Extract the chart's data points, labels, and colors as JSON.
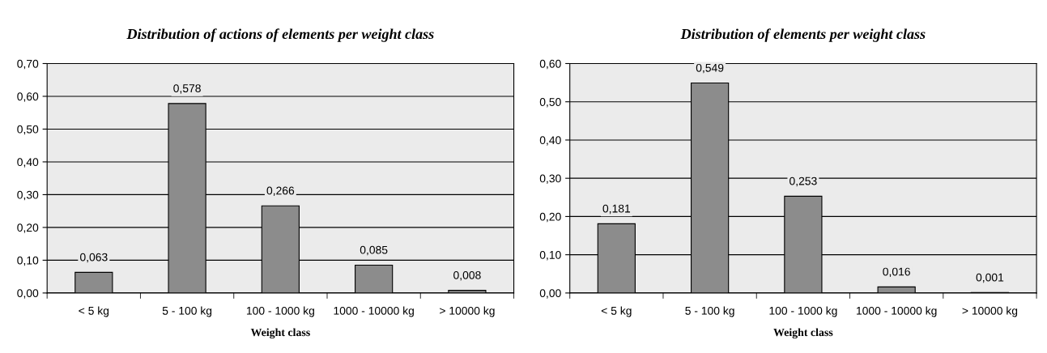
{
  "chart_data": [
    {
      "type": "bar",
      "title": "Distribution of actions of elements per weight class",
      "xlabel": "Weight class",
      "categories": [
        "< 5 kg",
        "5 - 100 kg",
        "100 - 1000 kg",
        "1000 - 10000 kg",
        "> 10000 kg"
      ],
      "values": [
        0.063,
        0.578,
        0.266,
        0.085,
        0.008
      ],
      "value_labels": [
        "0,063",
        "0,578",
        "0,266",
        "0,085",
        "0,008"
      ],
      "color": "#8c8c8c",
      "grid": "y",
      "ylim": [
        0,
        0.7
      ],
      "yticks": [
        {
          "value": 0,
          "label": "0,00"
        },
        {
          "value": 0.1,
          "label": "0,10"
        },
        {
          "value": 0.2,
          "label": "0,20"
        },
        {
          "value": 0.3,
          "label": "0,30"
        },
        {
          "value": 0.4,
          "label": "0,40"
        },
        {
          "value": 0.5,
          "label": "0,50"
        },
        {
          "value": 0.6,
          "label": "0,60"
        },
        {
          "value": 0.7,
          "label": "0,70"
        }
      ]
    },
    {
      "type": "bar",
      "title": "Distribution of elements per weight class",
      "xlabel": "Weight class",
      "categories": [
        "< 5 kg",
        "5 - 100 kg",
        "100 - 1000 kg",
        "1000 - 10000 kg",
        "> 10000 kg"
      ],
      "values": [
        0.181,
        0.549,
        0.253,
        0.016,
        0.001
      ],
      "value_labels": [
        "0,181",
        "0,549",
        "0,253",
        "0,016",
        "0,001"
      ],
      "color": "#8c8c8c",
      "grid": "y",
      "ylim": [
        0,
        0.6
      ],
      "yticks": [
        {
          "value": 0,
          "label": "0,00"
        },
        {
          "value": 0.1,
          "label": "0,10"
        },
        {
          "value": 0.2,
          "label": "0,20"
        },
        {
          "value": 0.3,
          "label": "0,30"
        },
        {
          "value": 0.4,
          "label": "0,40"
        },
        {
          "value": 0.5,
          "label": "0,50"
        },
        {
          "value": 0.6,
          "label": "0,60"
        }
      ]
    }
  ]
}
